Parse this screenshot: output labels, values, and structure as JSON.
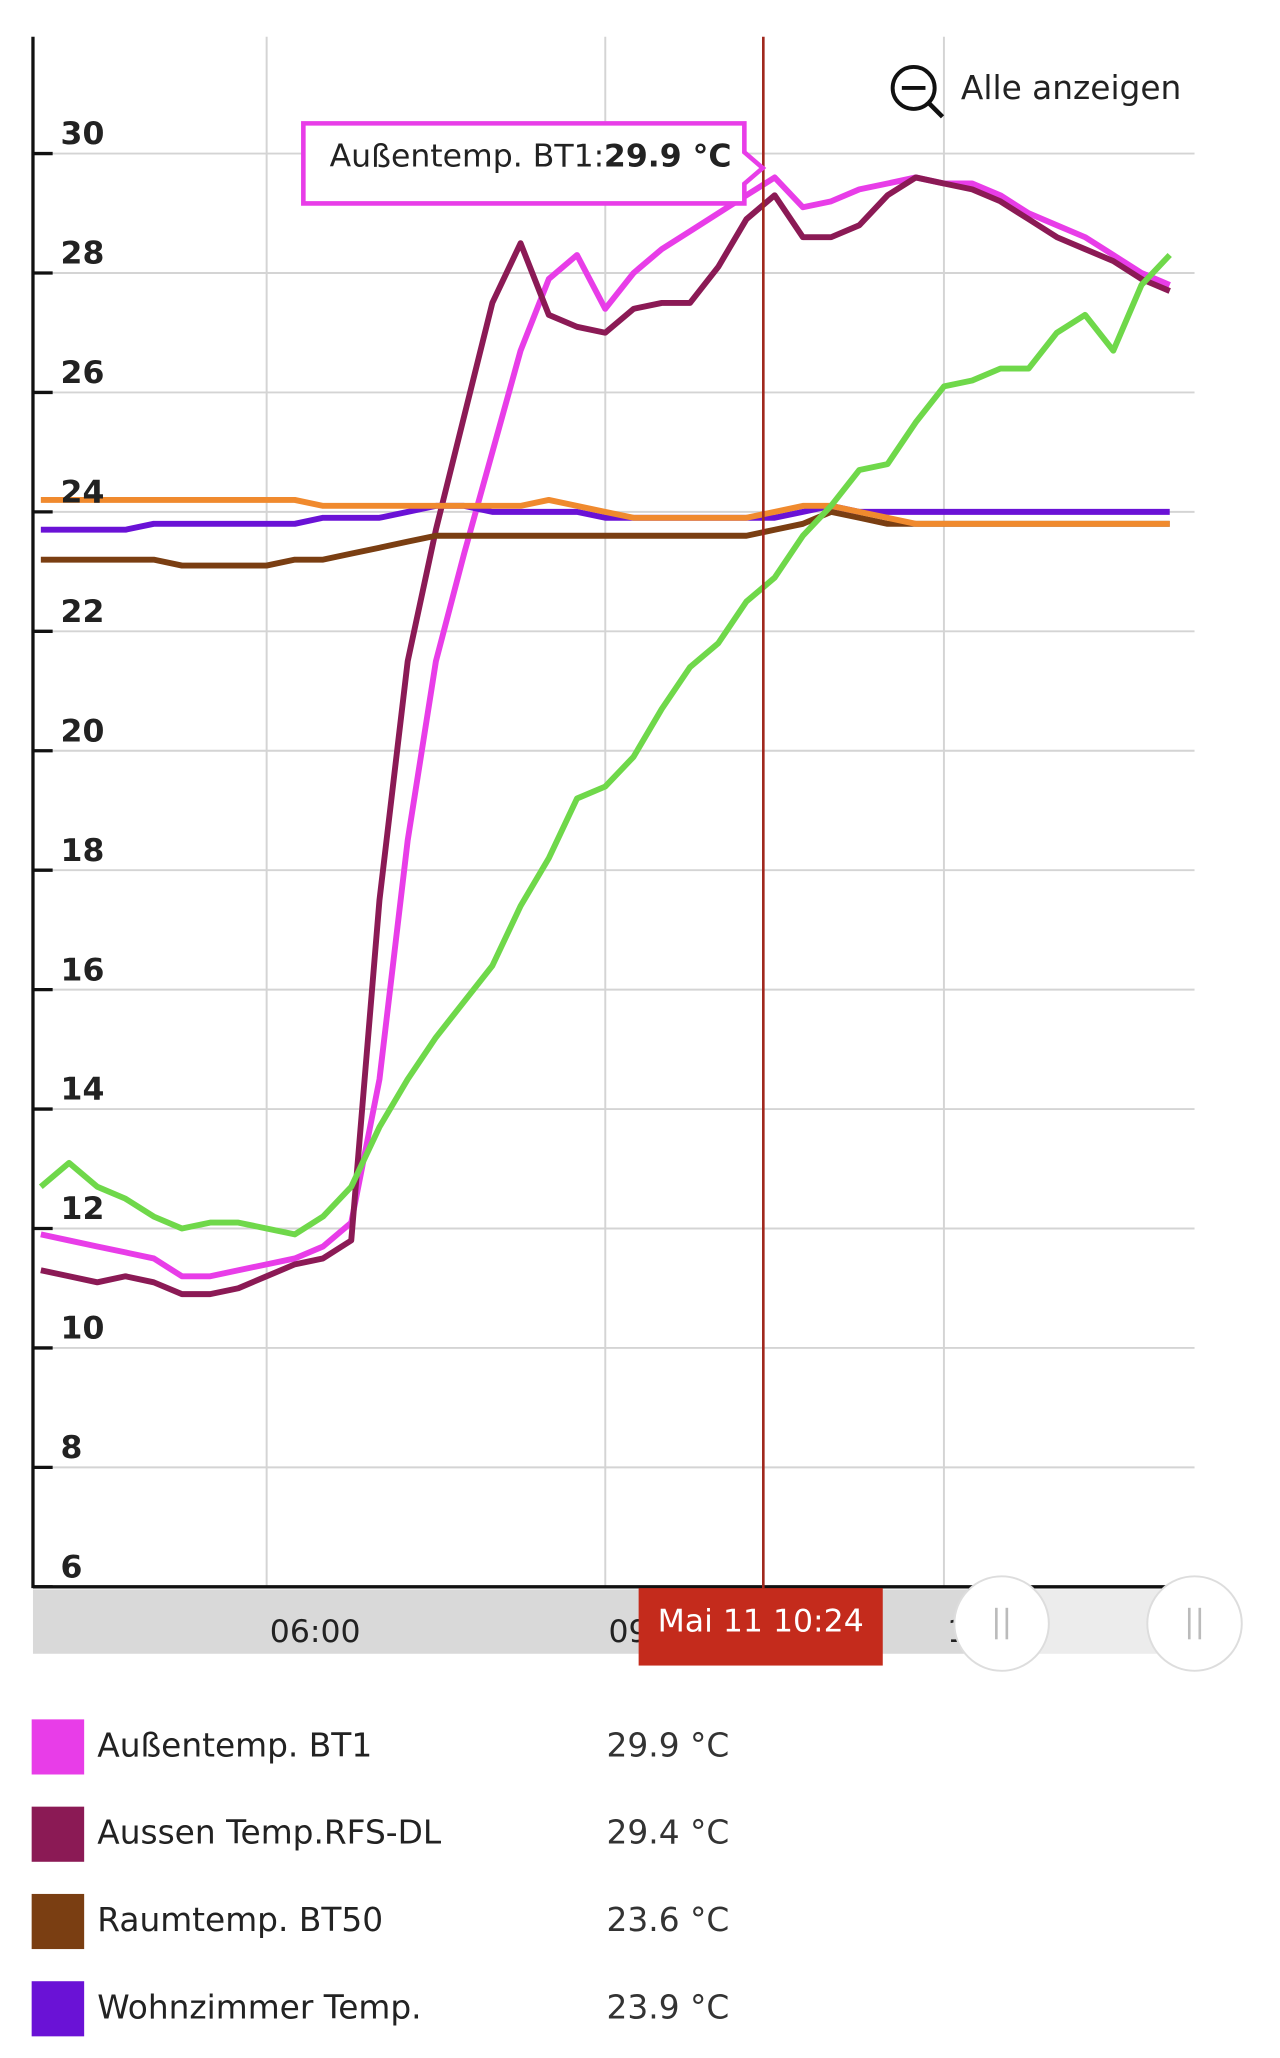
{
  "chart_data": {
    "type": "line",
    "x": [
      4.0,
      4.25,
      4.5,
      4.75,
      5.0,
      5.25,
      5.5,
      5.75,
      6.0,
      6.25,
      6.5,
      6.75,
      7.0,
      7.25,
      7.5,
      7.75,
      8.0,
      8.25,
      8.5,
      8.75,
      9.0,
      9.25,
      9.5,
      9.75,
      10.0,
      10.25,
      10.5,
      10.75,
      11.0,
      11.25,
      11.5,
      11.75,
      12.0,
      12.25,
      12.5,
      12.75,
      13.0,
      13.25,
      13.5,
      13.75,
      14.0
    ],
    "xlim": [
      3.93,
      14.22
    ],
    "xticks": [
      {
        "value": 6,
        "label": "06:00"
      },
      {
        "value": 9,
        "label": "09:00"
      },
      {
        "value": 12,
        "label": "12:00"
      }
    ],
    "ylim": [
      6,
      32
    ],
    "yticks": [
      6,
      8,
      10,
      12,
      14,
      16,
      18,
      20,
      22,
      24,
      26,
      28,
      30
    ],
    "grid": true,
    "series": [
      {
        "name": "Außentemp. BT1",
        "color": "#e83de8",
        "readout": "29.9 °C",
        "values": [
          11.9,
          11.8,
          11.7,
          11.6,
          11.5,
          11.2,
          11.2,
          11.3,
          11.4,
          11.5,
          11.7,
          12.1,
          14.5,
          18.5,
          21.5,
          23.3,
          25.0,
          26.7,
          27.9,
          28.3,
          27.4,
          28.0,
          28.4,
          28.7,
          29.0,
          29.3,
          29.6,
          29.1,
          29.2,
          29.4,
          29.5,
          29.6,
          29.5,
          29.5,
          29.3,
          29.0,
          28.8,
          28.6,
          28.3,
          28.0,
          27.8
        ]
      },
      {
        "name": "Aussen Temp.RFS-DL",
        "color": "#8b1a55",
        "readout": "29.4 °C",
        "values": [
          11.3,
          11.2,
          11.1,
          11.2,
          11.1,
          10.9,
          10.9,
          11.0,
          11.2,
          11.4,
          11.5,
          11.8,
          17.5,
          21.5,
          23.7,
          25.6,
          27.5,
          28.5,
          27.3,
          27.1,
          27.0,
          27.4,
          27.5,
          27.5,
          28.1,
          28.9,
          29.3,
          28.6,
          28.6,
          28.8,
          29.3,
          29.6,
          29.5,
          29.4,
          29.2,
          28.9,
          28.6,
          28.4,
          28.2,
          27.9,
          27.7
        ]
      },
      {
        "name": "Raumtemp. BT50",
        "color": "#7a3e12",
        "readout": "23.6 °C",
        "values": [
          23.2,
          23.2,
          23.2,
          23.2,
          23.2,
          23.1,
          23.1,
          23.1,
          23.1,
          23.2,
          23.2,
          23.3,
          23.4,
          23.5,
          23.6,
          23.6,
          23.6,
          23.6,
          23.6,
          23.6,
          23.6,
          23.6,
          23.6,
          23.6,
          23.6,
          23.6,
          23.7,
          23.8,
          24.0,
          23.9,
          23.8,
          23.8,
          23.8,
          23.8,
          23.8,
          23.8,
          23.8,
          23.8,
          23.8,
          23.8,
          23.8
        ]
      },
      {
        "name": "Wohnzimmer Temp.",
        "color": "#6a12d6",
        "readout": "23.9 °C",
        "values": [
          23.7,
          23.7,
          23.7,
          23.7,
          23.8,
          23.8,
          23.8,
          23.8,
          23.8,
          23.8,
          23.9,
          23.9,
          23.9,
          24.0,
          24.1,
          24.1,
          24.0,
          24.0,
          24.0,
          24.0,
          23.9,
          23.9,
          23.9,
          23.9,
          23.9,
          23.9,
          23.9,
          24.0,
          24.1,
          24.0,
          24.0,
          24.0,
          24.0,
          24.0,
          24.0,
          24.0,
          24.0,
          24.0,
          24.0,
          24.0,
          24.0
        ]
      },
      {
        "color": "#f08a2e",
        "values": [
          24.2,
          24.2,
          24.2,
          24.2,
          24.2,
          24.2,
          24.2,
          24.2,
          24.2,
          24.2,
          24.1,
          24.1,
          24.1,
          24.1,
          24.1,
          24.1,
          24.1,
          24.1,
          24.2,
          24.1,
          24.0,
          23.9,
          23.9,
          23.9,
          23.9,
          23.9,
          24.0,
          24.1,
          24.1,
          24.0,
          23.9,
          23.8,
          23.8,
          23.8,
          23.8,
          23.8,
          23.8,
          23.8,
          23.8,
          23.8,
          23.8
        ]
      },
      {
        "color": "#6fd84a",
        "values": [
          12.7,
          13.1,
          12.7,
          12.5,
          12.2,
          12.0,
          12.1,
          12.1,
          12.0,
          11.9,
          12.2,
          12.7,
          13.7,
          14.5,
          15.2,
          15.8,
          16.4,
          17.4,
          18.2,
          19.2,
          19.4,
          19.9,
          20.7,
          21.4,
          21.8,
          22.5,
          22.9,
          23.6,
          24.1,
          24.7,
          24.8,
          25.5,
          26.1,
          26.2,
          26.4,
          26.4,
          27.0,
          27.3,
          26.7,
          27.8,
          28.3
        ]
      }
    ],
    "cursor": {
      "x": 10.4,
      "label": "Mai 11 10:24"
    },
    "tooltip": {
      "label": "Außentemp. BT1:",
      "value": "29.9 °C"
    },
    "zoom_button": "Alle anzeigen"
  }
}
